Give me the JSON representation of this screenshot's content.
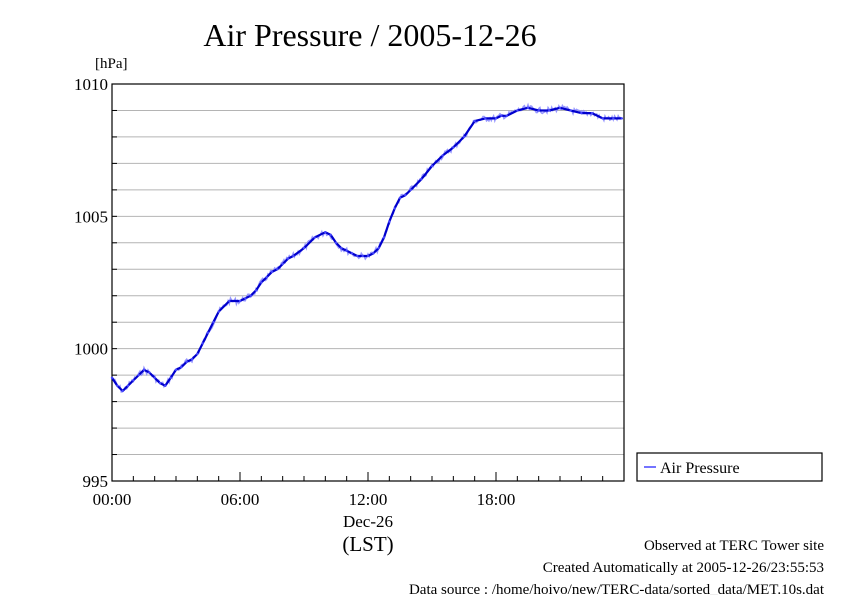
{
  "chart_data": {
    "type": "line",
    "title": "Air Pressure / 2005-12-26",
    "ylabel": "[hPa]",
    "ylim": [
      995,
      1010
    ],
    "xlim_hours": [
      0,
      24
    ],
    "y_ticks": [
      "995",
      "1000",
      "1005",
      "1010"
    ],
    "x_ticks": [
      {
        "label": "00:00",
        "hour": 0
      },
      {
        "label": "06:00",
        "hour": 6
      },
      {
        "label": "12:00",
        "hour": 12
      },
      {
        "label": "18:00",
        "hour": 18
      }
    ],
    "x_sublabel_date": "Dec-26",
    "x_sublabel_tz": "(LST)",
    "grid": "horizontal",
    "legend_position": "right",
    "series": [
      {
        "name": "Air Pressure",
        "color": "#4646ff",
        "hours": [
          0.0,
          0.25,
          0.5,
          0.75,
          1.0,
          1.25,
          1.5,
          1.75,
          2.0,
          2.25,
          2.5,
          2.75,
          3.0,
          3.25,
          3.5,
          3.75,
          4.0,
          4.25,
          4.5,
          4.75,
          5.0,
          5.5,
          6.0,
          6.25,
          6.5,
          6.75,
          7.0,
          7.25,
          7.5,
          7.75,
          8.0,
          8.25,
          8.5,
          9.0,
          9.5,
          10.0,
          10.25,
          10.5,
          10.75,
          11.0,
          11.25,
          11.5,
          11.75,
          12.0,
          12.25,
          12.5,
          12.75,
          13.0,
          13.25,
          13.5,
          13.75,
          14.0,
          14.5,
          15.0,
          15.5,
          16.0,
          16.5,
          17.0,
          17.5,
          18.0,
          18.25,
          18.5,
          19.0,
          19.5,
          20.0,
          20.5,
          21.0,
          21.5,
          22.0,
          22.5,
          23.0,
          23.5,
          23.9
        ],
        "values": [
          998.9,
          998.6,
          998.4,
          998.6,
          998.8,
          999.0,
          999.2,
          999.1,
          998.9,
          998.7,
          998.6,
          998.9,
          999.2,
          999.3,
          999.5,
          999.6,
          999.8,
          1000.2,
          1000.6,
          1001.0,
          1001.4,
          1001.8,
          1001.8,
          1001.9,
          1002.0,
          1002.2,
          1002.5,
          1002.7,
          1002.9,
          1003.0,
          1003.2,
          1003.4,
          1003.5,
          1003.8,
          1004.2,
          1004.4,
          1004.3,
          1004.0,
          1003.8,
          1003.7,
          1003.6,
          1003.5,
          1003.5,
          1003.5,
          1003.6,
          1003.8,
          1004.2,
          1004.8,
          1005.3,
          1005.7,
          1005.8,
          1006.0,
          1006.4,
          1006.9,
          1007.3,
          1007.6,
          1008.0,
          1008.6,
          1008.7,
          1008.7,
          1008.8,
          1008.8,
          1009.0,
          1009.1,
          1009.0,
          1009.0,
          1009.1,
          1009.0,
          1008.9,
          1008.9,
          1008.7,
          1008.7,
          1008.7
        ]
      }
    ]
  },
  "footer": {
    "site": "Observed at TERC Tower site",
    "created": "Created Automatically at 2005-12-26/23:55:53",
    "source": "Data source : /home/hoivo/new/TERC-data/sorted_data/MET.10s.dat"
  }
}
